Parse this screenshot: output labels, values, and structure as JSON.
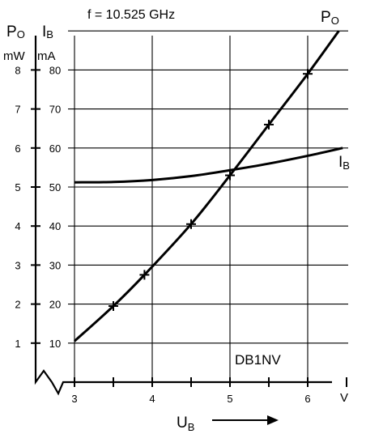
{
  "chart_data": {
    "type": "line",
    "title": "f = 10.525 GHz",
    "annotation": "DB1NV",
    "xlabel": "U",
    "xlabel_sub": "B",
    "x_unit": "V",
    "xlim": [
      3,
      6.5
    ],
    "x_ticks": [
      "3",
      "4",
      "5",
      "6"
    ],
    "y_left": {
      "label": "P",
      "label_sub": "O",
      "unit": "mW",
      "ylim": [
        0,
        9
      ],
      "ticks": [
        "1",
        "2",
        "3",
        "4",
        "5",
        "6",
        "7",
        "8"
      ]
    },
    "y_right": {
      "label": "I",
      "label_sub": "B",
      "unit": "mA",
      "ylim": [
        0,
        90
      ],
      "ticks": [
        "10",
        "20",
        "30",
        "40",
        "50",
        "60",
        "70",
        "80"
      ]
    },
    "grid": true,
    "series": [
      {
        "name": "P",
        "name_sub": "O",
        "axis": "left",
        "color": "#000000",
        "x": [
          3.0,
          3.5,
          3.9,
          4.5,
          5.0,
          5.5,
          6.0,
          6.4
        ],
        "y": [
          1.05,
          1.95,
          2.75,
          4.05,
          5.3,
          6.6,
          7.9,
          9.0
        ],
        "marked_x": [
          3.5,
          3.9,
          4.5,
          5.0,
          5.5,
          6.0
        ]
      },
      {
        "name": "I",
        "name_sub": "B",
        "axis": "right",
        "color": "#000000",
        "x": [
          3.0,
          3.5,
          4.0,
          4.5,
          5.0,
          5.5,
          6.0,
          6.45
        ],
        "y": [
          51.2,
          51.3,
          51.8,
          52.8,
          54.3,
          56.0,
          58.0,
          60.0
        ]
      }
    ]
  }
}
